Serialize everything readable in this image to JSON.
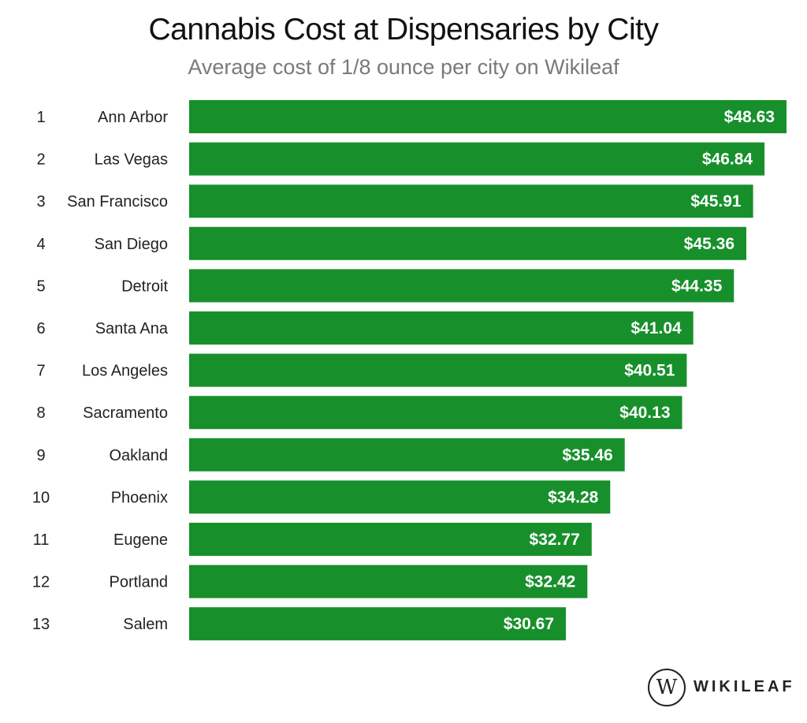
{
  "header": {
    "title": "Cannabis Cost at Dispensaries by City",
    "subtitle": "Average cost of 1/8 ounce per city on Wikileaf"
  },
  "brand": {
    "logo_glyph": "W",
    "name": "WIKILEAF"
  },
  "colors": {
    "bar": "#17902b",
    "label_text": "#ffffff"
  },
  "chart_data": {
    "type": "bar",
    "orientation": "horizontal",
    "title": "Cannabis Cost at Dispensaries by City",
    "subtitle": "Average cost of 1/8 ounce per city on Wikileaf",
    "xlabel": "",
    "ylabel": "",
    "xlim": [
      0,
      48.63
    ],
    "grid": false,
    "ranks": [
      "1",
      "2",
      "3",
      "4",
      "5",
      "6",
      "7",
      "8",
      "9",
      "10",
      "11",
      "12",
      "13"
    ],
    "categories": [
      "Ann Arbor",
      "Las Vegas",
      "San Francisco",
      "San Diego",
      "Detroit",
      "Santa Ana",
      "Los Angeles",
      "Sacramento",
      "Oakland",
      "Phoenix",
      "Eugene",
      "Portland",
      "Salem"
    ],
    "values": [
      48.63,
      46.84,
      45.91,
      45.36,
      44.35,
      41.04,
      40.51,
      40.13,
      35.46,
      34.28,
      32.77,
      32.42,
      30.67
    ],
    "data_labels": [
      "$48.63",
      "$46.84",
      "$45.91",
      "$45.36",
      "$44.35",
      "$41.04",
      "$40.51",
      "$40.13",
      "$35.46",
      "$34.28",
      "$32.77",
      "$32.42",
      "$30.67"
    ]
  }
}
